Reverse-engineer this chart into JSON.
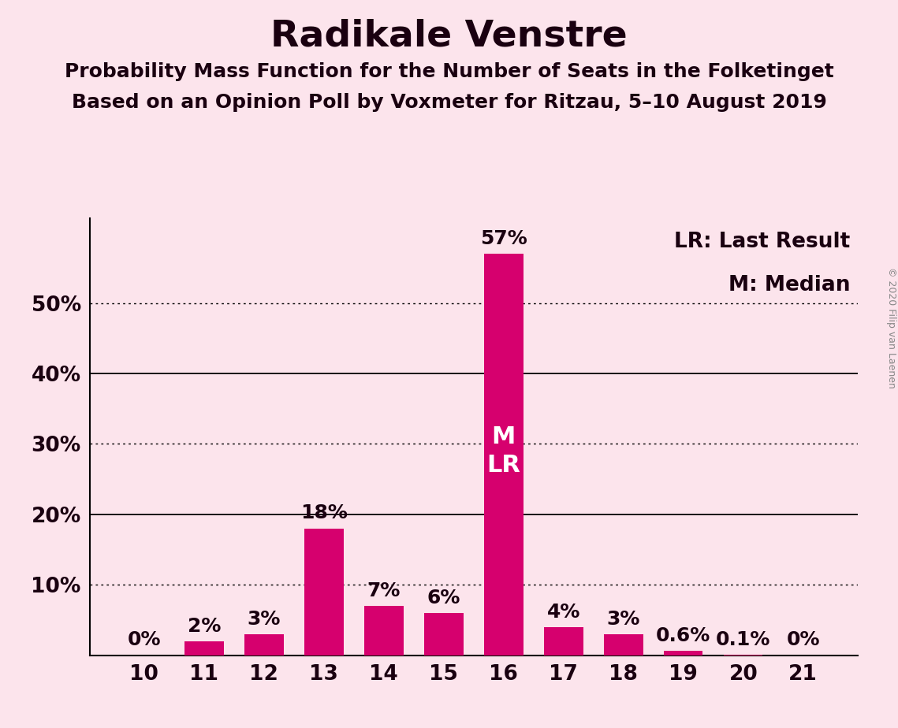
{
  "title": "Radikale Venstre",
  "subtitle1": "Probability Mass Function for the Number of Seats in the Folketinget",
  "subtitle2": "Based on an Opinion Poll by Voxmeter for Ritzau, 5–10 August 2019",
  "copyright": "© 2020 Filip van Laenen",
  "categories": [
    10,
    11,
    12,
    13,
    14,
    15,
    16,
    17,
    18,
    19,
    20,
    21
  ],
  "values": [
    0.0,
    2.0,
    3.0,
    18.0,
    7.0,
    6.0,
    57.0,
    4.0,
    3.0,
    0.6,
    0.1,
    0.0
  ],
  "labels": [
    "0%",
    "2%",
    "3%",
    "18%",
    "7%",
    "6%",
    "57%",
    "4%",
    "3%",
    "0.6%",
    "0.1%",
    "0%"
  ],
  "bar_color": "#d6006e",
  "background_color": "#fce4ec",
  "text_color": "#1a0010",
  "median_bar": 16,
  "last_result_bar": 16,
  "legend_lr": "LR: Last Result",
  "legend_m": "M: Median",
  "ylabel_ticks": [
    0,
    10,
    20,
    30,
    40,
    50
  ],
  "ytick_labels": [
    "",
    "10%",
    "20%",
    "30%",
    "40%",
    "50%"
  ],
  "ylim": [
    0,
    62
  ],
  "solid_lines": [
    20,
    40
  ],
  "dotted_lines": [
    10,
    30,
    50
  ],
  "title_fontsize": 34,
  "subtitle_fontsize": 18,
  "label_fontsize": 18,
  "tick_fontsize": 19,
  "legend_fontsize": 19,
  "bar_label_fontsize": 18,
  "ml_fontsize": 22,
  "copyright_fontsize": 9
}
